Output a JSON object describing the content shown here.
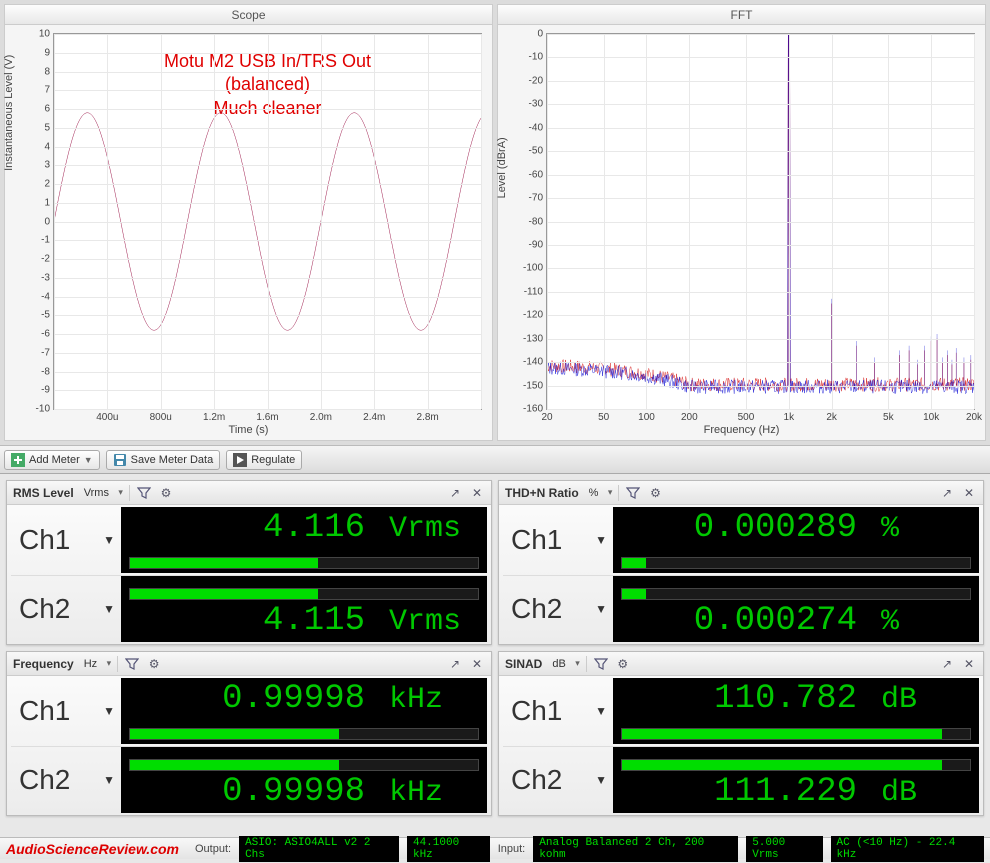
{
  "scope": {
    "title": "Scope",
    "ylabel": "Instantaneous Level (V)",
    "xlabel": "Time (s)",
    "yticks": [
      -10,
      -9,
      -8,
      -7,
      -6,
      -5,
      -4,
      -3,
      -2,
      -1,
      0,
      1,
      2,
      3,
      4,
      5,
      6,
      7,
      8,
      9,
      10
    ],
    "xticks": [
      "",
      "400u",
      "800u",
      "1.2m",
      "1.6m",
      "2.0m",
      "2.4m",
      "2.8m",
      ""
    ],
    "xlim": [
      0,
      0.0032
    ],
    "ylim": [
      -10,
      10
    ],
    "line_color": "#a02050",
    "amplitude": 5.8,
    "frequency_hz": 1000,
    "grid_color": "#e8e8e8",
    "background_color": "#ffffff",
    "annotation_line1": "Motu M2 USB In/TRS Out (balanced)",
    "annotation_line2": "Much cleaner",
    "annotation_color": "#e00000"
  },
  "fft": {
    "title": "FFT",
    "ylabel": "Level (dBrA)",
    "xlabel": "Frequency (Hz)",
    "yticks": [
      0,
      -10,
      -20,
      -30,
      -40,
      -50,
      -60,
      -70,
      -80,
      -90,
      -100,
      -110,
      -120,
      -130,
      -140,
      -150,
      -160
    ],
    "xticks_labels": [
      "20",
      "50",
      "100",
      "200",
      "500",
      "1k",
      "2k",
      "5k",
      "10k",
      "20k"
    ],
    "xticks_values": [
      20,
      50,
      100,
      200,
      500,
      1000,
      2000,
      5000,
      10000,
      20000
    ],
    "ylim": [
      -160,
      0
    ],
    "xlim_log": [
      20,
      20000
    ],
    "noise_floor_db": -150,
    "noise_lf_db": -142,
    "line_colors": [
      "#d00000",
      "#0000d0"
    ],
    "fundamental_hz": 1000,
    "fundamental_db": 0,
    "harmonics": [
      {
        "hz": 2000,
        "db": -115
      },
      {
        "hz": 3000,
        "db": -133
      },
      {
        "hz": 4000,
        "db": -140
      },
      {
        "hz": 5000,
        "db": -125
      },
      {
        "hz": 6000,
        "db": -137
      },
      {
        "hz": 7000,
        "db": -135
      },
      {
        "hz": 8000,
        "db": -141
      },
      {
        "hz": 9000,
        "db": -135
      },
      {
        "hz": 10000,
        "db": -131
      },
      {
        "hz": 11000,
        "db": -130
      },
      {
        "hz": 12000,
        "db": -140
      },
      {
        "hz": 13000,
        "db": -137
      },
      {
        "hz": 14000,
        "db": -141
      },
      {
        "hz": 15000,
        "db": -136
      },
      {
        "hz": 17000,
        "db": -140
      },
      {
        "hz": 19000,
        "db": -139
      }
    ],
    "grid_color": "#e8e8e8"
  },
  "toolbar": {
    "add_meter": "Add Meter",
    "save_meter": "Save Meter Data",
    "regulate": "Regulate"
  },
  "meters": {
    "rms": {
      "title": "RMS Level",
      "unit": "Vrms",
      "ch1": {
        "label": "Ch1",
        "value": "4.116",
        "unit": "Vrms",
        "bar_pct": 54
      },
      "ch2": {
        "label": "Ch2",
        "value": "4.115",
        "unit": "Vrms",
        "bar_pct": 54
      }
    },
    "thdn": {
      "title": "THD+N Ratio",
      "unit": "%",
      "ch1": {
        "label": "Ch1",
        "value": "0.000289",
        "unit": "%",
        "bar_pct": 7
      },
      "ch2": {
        "label": "Ch2",
        "value": "0.000274",
        "unit": "%",
        "bar_pct": 7
      }
    },
    "freq": {
      "title": "Frequency",
      "unit": "Hz",
      "ch1": {
        "label": "Ch1",
        "value": "0.99998",
        "unit": "kHz",
        "bar_pct": 60
      },
      "ch2": {
        "label": "Ch2",
        "value": "0.99998",
        "unit": "kHz",
        "bar_pct": 60
      }
    },
    "sinad": {
      "title": "SINAD",
      "unit": "dB",
      "ch1": {
        "label": "Ch1",
        "value": "110.782",
        "unit": "dB",
        "bar_pct": 92
      },
      "ch2": {
        "label": "Ch2",
        "value": "111.229",
        "unit": "dB",
        "bar_pct": 92
      }
    }
  },
  "status": {
    "brand": "AudioScienceReview.com",
    "output_label": "Output:",
    "output_val": "ASIO: ASIO4ALL v2 2 Chs",
    "output_rate": "44.1000 kHz",
    "input_label": "Input:",
    "input_val": "Analog Balanced 2 Ch, 200 kohm",
    "input_level": "5.000 Vrms",
    "input_bw": "AC (<10 Hz) - 22.4 kHz"
  },
  "colors": {
    "meter_green": "#00dd00",
    "meter_bg": "#000000"
  }
}
